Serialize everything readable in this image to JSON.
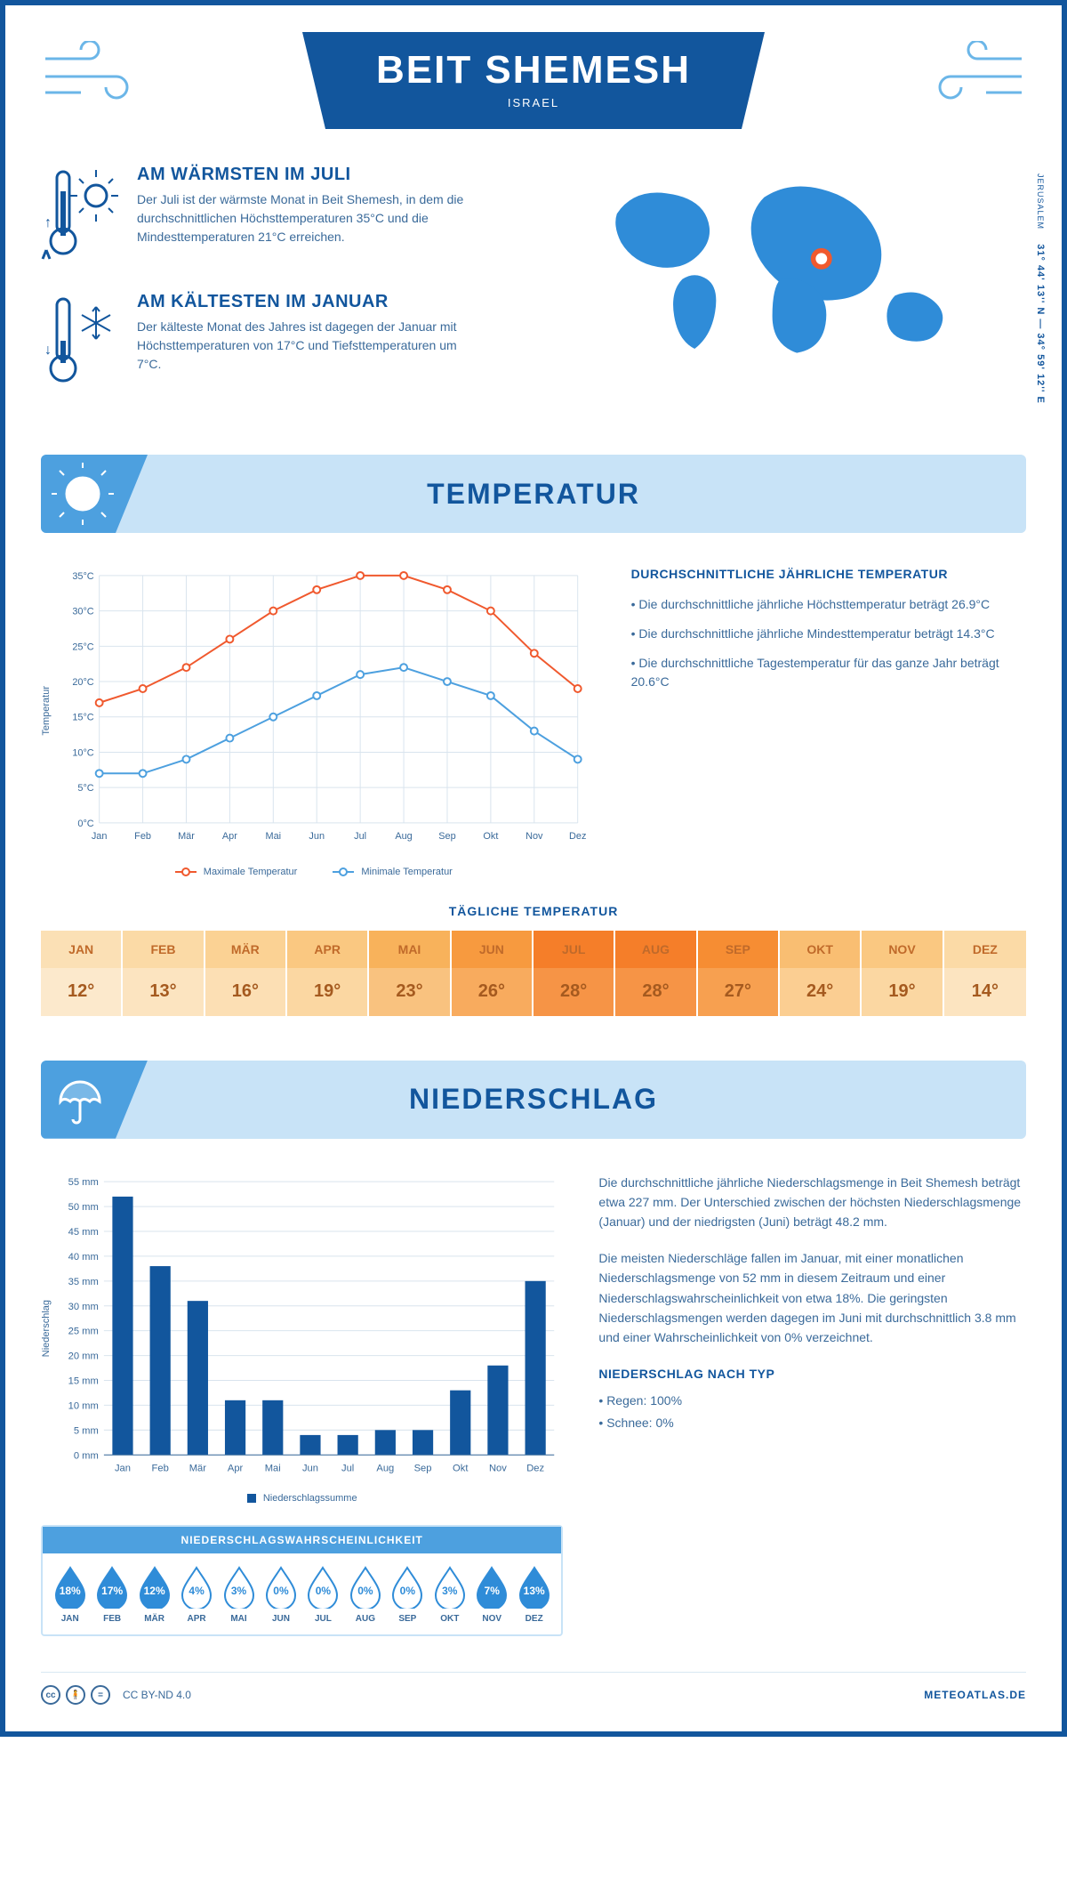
{
  "header": {
    "city": "BEIT SHEMESH",
    "country": "ISRAEL"
  },
  "coordinates": "31° 44' 13'' N — 34° 59' 12'' E",
  "capital_label": "JERUSALEM",
  "warmest": {
    "title": "AM WÄRMSTEN IM JULI",
    "text": "Der Juli ist der wärmste Monat in Beit Shemesh, in dem die durchschnittlichen Höchsttemperaturen 35°C und die Mindesttemperaturen 21°C erreichen."
  },
  "coldest": {
    "title": "AM KÄLTESTEN IM JANUAR",
    "text": "Der kälteste Monat des Jahres ist dagegen der Januar mit Höchsttemperaturen von 17°C und Tiefsttemperaturen um 7°C."
  },
  "section_temperature": "TEMPERATUR",
  "section_precip": "NIEDERSCHLAG",
  "temp_chart": {
    "type": "line",
    "months": [
      "Jan",
      "Feb",
      "Mär",
      "Apr",
      "Mai",
      "Jun",
      "Jul",
      "Aug",
      "Sep",
      "Okt",
      "Nov",
      "Dez"
    ],
    "max_series": [
      17,
      19,
      22,
      26,
      30,
      33,
      35,
      35,
      33,
      30,
      24,
      19
    ],
    "min_series": [
      7,
      7,
      9,
      12,
      15,
      18,
      21,
      22,
      20,
      18,
      13,
      9
    ],
    "ylim": [
      0,
      35
    ],
    "ytick_step": 5,
    "ytick_suffix": "°C",
    "ylabel": "Temperatur",
    "max_color": "#f0592e",
    "min_color": "#4da0df",
    "grid_color": "#d9e4ee",
    "line_width": 2,
    "marker_size": 4,
    "legend_max": "Maximale Temperatur",
    "legend_min": "Minimale Temperatur"
  },
  "temp_info": {
    "title": "DURCHSCHNITTLICHE JÄHRLICHE TEMPERATUR",
    "bullet1": "• Die durchschnittliche jährliche Höchsttemperatur beträgt 26.9°C",
    "bullet2": "• Die durchschnittliche jährliche Mindesttemperatur beträgt 14.3°C",
    "bullet3": "• Die durchschnittliche Tagestemperatur für das ganze Jahr beträgt 20.6°C"
  },
  "daily_temp": {
    "title": "TÄGLICHE TEMPERATUR",
    "months": [
      "JAN",
      "FEB",
      "MÄR",
      "APR",
      "MAI",
      "JUN",
      "JUL",
      "AUG",
      "SEP",
      "OKT",
      "NOV",
      "DEZ"
    ],
    "values": [
      "12°",
      "13°",
      "16°",
      "19°",
      "23°",
      "26°",
      "28°",
      "28°",
      "27°",
      "24°",
      "19°",
      "14°"
    ],
    "head_colors": [
      "#fbe0b5",
      "#fbdaa6",
      "#fbd294",
      "#fac881",
      "#f8b25b",
      "#f79a3f",
      "#f57e29",
      "#f57e29",
      "#f68d33",
      "#f9be72",
      "#fac881",
      "#fbdaa6"
    ],
    "cell_colors": [
      "#fce9cc",
      "#fce4c0",
      "#fcdfb4",
      "#fbd7a2",
      "#f9c27f",
      "#f8ab5e",
      "#f69446",
      "#f69446",
      "#f7a050",
      "#fbce92",
      "#fbd7a2",
      "#fce4c0"
    ],
    "value_color": "#a55a1f"
  },
  "precip_chart": {
    "type": "bar",
    "months": [
      "Jan",
      "Feb",
      "Mär",
      "Apr",
      "Mai",
      "Jun",
      "Jul",
      "Aug",
      "Sep",
      "Okt",
      "Nov",
      "Dez"
    ],
    "values": [
      52,
      38,
      31,
      11,
      11,
      4,
      4,
      5,
      5,
      13,
      18,
      35
    ],
    "ylim": [
      0,
      55
    ],
    "ytick_step": 5,
    "ytick_suffix": " mm",
    "ylabel": "Niederschlag",
    "bar_color": "#12569d",
    "grid_color": "#d9e4ee",
    "bar_width": 0.55,
    "legend": "Niederschlagssumme"
  },
  "precip_text": {
    "p1": "Die durchschnittliche jährliche Niederschlagsmenge in Beit Shemesh beträgt etwa 227 mm. Der Unterschied zwischen der höchsten Niederschlagsmenge (Januar) und der niedrigsten (Juni) beträgt 48.2 mm.",
    "p2": "Die meisten Niederschläge fallen im Januar, mit einer monatlichen Niederschlagsmenge von 52 mm in diesem Zeitraum und einer Niederschlagswahrscheinlichkeit von etwa 18%. Die geringsten Niederschlagsmengen werden dagegen im Juni mit durchschnittlich 3.8 mm und einer Wahrscheinlichkeit von 0% verzeichnet.",
    "type_title": "NIEDERSCHLAG NACH TYP",
    "type_b1": "• Regen: 100%",
    "type_b2": "• Schnee: 0%"
  },
  "probability": {
    "title": "NIEDERSCHLAGSWAHRSCHEINLICHKEIT",
    "months": [
      "JAN",
      "FEB",
      "MÄR",
      "APR",
      "MAI",
      "JUN",
      "JUL",
      "AUG",
      "SEP",
      "OKT",
      "NOV",
      "DEZ"
    ],
    "values": [
      "18%",
      "17%",
      "12%",
      "4%",
      "3%",
      "0%",
      "0%",
      "0%",
      "0%",
      "3%",
      "7%",
      "13%"
    ],
    "fill_color": "#2f8cd8",
    "outline_color": "#2f8cd8",
    "filled": [
      true,
      true,
      true,
      false,
      false,
      false,
      false,
      false,
      false,
      false,
      true,
      true
    ]
  },
  "footer": {
    "license": "CC BY-ND 4.0",
    "site": "METEOATLAS.DE"
  },
  "colors": {
    "primary": "#12569d",
    "accent_light": "#c8e3f7",
    "accent_mid": "#4da0df"
  }
}
